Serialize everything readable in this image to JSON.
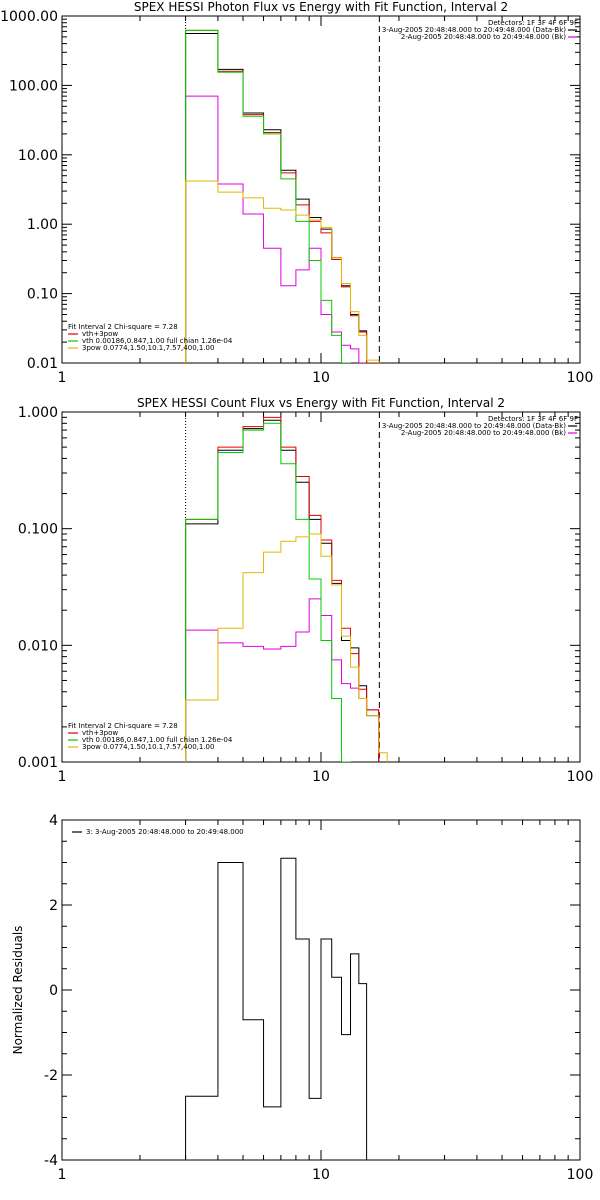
{
  "chart_data": [
    {
      "type": "line",
      "title": "SPEX HESSI Photon Flux vs Energy with Fit Function, Interval 2",
      "xlabel": "",
      "ylabel": "",
      "xscale": "log",
      "yscale": "log",
      "xlim": [
        1,
        100
      ],
      "ylim": [
        0.01,
        1000
      ],
      "xticklabels": [
        "1",
        "10",
        "100"
      ],
      "yticklabels": [
        "0.01",
        "0.10",
        "1.00",
        "10.00",
        "100.00",
        "1000.00"
      ],
      "vlines": [
        {
          "x": 3.0,
          "style": "dotted"
        },
        {
          "x": 16.8,
          "style": "dashed"
        }
      ],
      "legend_top_right": [
        "Detectors: 1F 3F 4F 6F 9F",
        "3-Aug-2005 20:48:48.000 to 20:49:48.000 (Data-Bk)",
        "2-Aug-2005 20:48:48.000 to 20:49:48.000 (Bk)"
      ],
      "legend_bottom_left": [
        "Fit Interval 2   Chi-square = 7.28",
        "vth+3pow",
        "vth 0.00186,0.847,1.00  full chian 1.26e-04",
        "3pow 0.0774,1.50,10.1,7.57,400,1.00"
      ],
      "edges": [
        3.0,
        4.0,
        5.0,
        6.0,
        7.0,
        8.0,
        9.0,
        10.0,
        11.0,
        12.0,
        13.0,
        14.0,
        15.0,
        16.7,
        18.0
      ],
      "series": [
        {
          "name": "3-Aug-2005 20:48:48.000 to 20:49:48.000 (Data-Bk)",
          "color": "#000000",
          "values": [
            560,
            170,
            40,
            23,
            6.0,
            2.3,
            1.25,
            0.85,
            0.33,
            0.13,
            0.05,
            0.029,
            0.01
          ]
        },
        {
          "name": "2-Aug-2005 20:48:48.000 to 20:49:48.000 (Bk)",
          "color": "#e000e0",
          "values": [
            70,
            3.8,
            1.4,
            0.45,
            0.13,
            0.22,
            0.45,
            0.05,
            0.028,
            0.018,
            0.016,
            0.01
          ]
        },
        {
          "name": "vth+3pow",
          "color": "#e00000",
          "values": [
            620,
            160,
            38,
            21,
            5.5,
            1.9,
            1.1,
            0.75,
            0.31,
            0.125,
            0.048,
            0.028,
            0.01
          ]
        },
        {
          "name": "vth 0.00186,0.847,1.00  full chian 1.26e-04",
          "color": "#00cc00",
          "values": [
            620,
            155,
            36,
            20,
            4.5,
            1.1,
            0.3,
            0.08,
            0.025,
            0.01
          ]
        },
        {
          "name": "3pow 0.0774,1.50,10.1,7.57,400,1.00",
          "color": "#e0b800",
          "values": [
            4.2,
            2.9,
            2.4,
            1.7,
            1.6,
            1.35,
            1.15,
            0.9,
            0.33,
            0.14,
            0.055,
            0.025,
            0.011,
            0.009
          ]
        }
      ]
    },
    {
      "type": "line",
      "title": "SPEX HESSI Count Flux vs Energy with Fit Function, Interval 2",
      "xlabel": "",
      "ylabel": "",
      "xscale": "log",
      "yscale": "log",
      "xlim": [
        1,
        100
      ],
      "ylim": [
        0.001,
        1
      ],
      "xticklabels": [
        "1",
        "10",
        "100"
      ],
      "yticklabels": [
        "0.001",
        "0.010",
        "0.100",
        "1.000"
      ],
      "vlines": [
        {
          "x": 3.0,
          "style": "dotted"
        },
        {
          "x": 16.8,
          "style": "dashed"
        }
      ],
      "legend_top_right": [
        "Detectors: 1F 3F 4F 6F 9F",
        "3-Aug-2005 20:48:48.000 to 20:49:48.000 (Data-Bk)",
        "2-Aug-2005 20:48:48.000 to 20:49:48.000 (Bk)"
      ],
      "legend_bottom_left": [
        "Fit Interval 2   Chi-square = 7.28",
        "vth+3pow",
        "vth 0.00186,0.847,1.00  full chian 1.26e-04",
        "3pow 0.0774,1.50,10.1,7.57,400,1.00"
      ],
      "edges": [
        3.0,
        4.0,
        5.0,
        6.0,
        7.0,
        8.0,
        9.0,
        10.0,
        11.0,
        12.0,
        13.0,
        14.0,
        15.0,
        16.7,
        18.0
      ],
      "series": [
        {
          "name": "3-Aug-2005 20:48:48.000 to 20:49:48.000 (Data-Bk)",
          "color": "#000000",
          "values": [
            0.11,
            0.47,
            0.72,
            0.85,
            0.47,
            0.25,
            0.12,
            0.075,
            0.034,
            0.011,
            0.0095,
            0.0045,
            0.0025
          ]
        },
        {
          "name": "2-Aug-2005 20:48:48.000 to 20:49:48.000 (Bk)",
          "color": "#e000e0",
          "values": [
            0.0135,
            0.0105,
            0.0098,
            0.0093,
            0.0098,
            0.013,
            0.025,
            0.018,
            0.0075,
            0.0047,
            0.0043,
            0.0035,
            0.0028
          ]
        },
        {
          "name": "vth+3pow",
          "color": "#e00000",
          "values": [
            0.12,
            0.5,
            0.75,
            0.9,
            0.5,
            0.28,
            0.13,
            0.08,
            0.036,
            0.014,
            0.0085,
            0.0042,
            0.0028
          ]
        },
        {
          "name": "vth 0.00186,0.847,1.00  full chian 1.26e-04",
          "color": "#00cc00",
          "values": [
            0.12,
            0.45,
            0.7,
            0.8,
            0.36,
            0.12,
            0.037,
            0.011,
            0.0035,
            0.001
          ]
        },
        {
          "name": "3pow 0.0774,1.50,10.1,7.57,400,1.00",
          "color": "#e0b800",
          "values": [
            0.0034,
            0.014,
            0.042,
            0.063,
            0.078,
            0.085,
            0.09,
            0.058,
            0.033,
            0.012,
            0.0065,
            0.0035,
            0.0025,
            0.0012
          ]
        }
      ]
    },
    {
      "type": "line",
      "title": "",
      "xlabel": "",
      "ylabel": "Normalized Residuals",
      "xscale": "log",
      "yscale": "linear",
      "xlim": [
        1,
        100
      ],
      "ylim": [
        -4,
        4
      ],
      "xticklabels": [
        "1",
        "10",
        "100"
      ],
      "yticklabels": [
        "-4",
        "-2",
        "0",
        "2",
        "4"
      ],
      "legend": [
        "3:  3-Aug-2005 20:48:48.000 to 20:49:48.000"
      ],
      "edges": [
        3.0,
        4.0,
        5.0,
        6.0,
        7.0,
        8.0,
        9.0,
        10.0,
        11.0,
        12.0,
        13.0,
        14.0,
        15.0,
        16.7
      ],
      "series": [
        {
          "name": "3:  3-Aug-2005 20:48:48.000 to 20:49:48.000",
          "color": "#000000",
          "values": [
            -2.5,
            3.0,
            -0.7,
            -2.75,
            3.1,
            1.2,
            -2.55,
            1.2,
            0.3,
            -1.05,
            0.85,
            0.15
          ]
        }
      ]
    }
  ]
}
